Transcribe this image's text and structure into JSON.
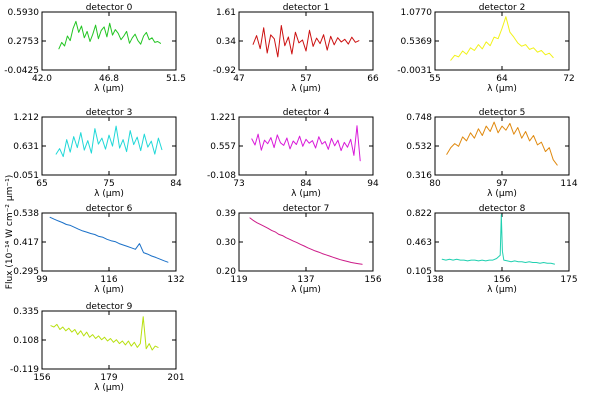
{
  "figure": {
    "ylabel": "Flux (10⁻¹⁴ W cm⁻² μm⁻¹)",
    "xlabel_template": "λ (μm)"
  },
  "chart_data": [
    {
      "type": "line",
      "title": "detector 0",
      "xlabel": "λ (μm)",
      "xlim": [
        42.0,
        51.5
      ],
      "ylim": [
        -0.0425,
        0.593
      ],
      "x_ticks": [
        "42.0",
        "46.8",
        "51.5"
      ],
      "y_ticks": [
        "-0.0425",
        "0.2753",
        "0.5930"
      ],
      "color": "#22c522",
      "series": [
        {
          "x": [
            43.2,
            43.4,
            43.6,
            43.8,
            44.0,
            44.2,
            44.4,
            44.6,
            44.8,
            45.0,
            45.2,
            45.4,
            45.6,
            45.8,
            46.0,
            46.2,
            46.4,
            46.6,
            46.8,
            47.0,
            47.2,
            47.4,
            47.6,
            47.8,
            48.0,
            48.2,
            48.4,
            48.6,
            48.8,
            49.0,
            49.2,
            49.4,
            49.6,
            49.8,
            50.0,
            50.2,
            50.4
          ],
          "y": [
            0.19,
            0.26,
            0.22,
            0.33,
            0.28,
            0.41,
            0.49,
            0.37,
            0.44,
            0.31,
            0.38,
            0.27,
            0.35,
            0.45,
            0.3,
            0.39,
            0.43,
            0.32,
            0.47,
            0.34,
            0.4,
            0.36,
            0.29,
            0.33,
            0.38,
            0.25,
            0.31,
            0.35,
            0.28,
            0.24,
            0.33,
            0.37,
            0.29,
            0.31,
            0.26,
            0.27,
            0.25
          ]
        }
      ]
    },
    {
      "type": "line",
      "title": "detector 1",
      "xlabel": "λ (μm)",
      "xlim": [
        47,
        66
      ],
      "ylim": [
        -0.92,
        1.61
      ],
      "x_ticks": [
        "47",
        "57",
        "66"
      ],
      "y_ticks": [
        "-0.92",
        "0.34",
        "1.61"
      ],
      "color": "#cc1111",
      "series": [
        {
          "x": [
            49.0,
            49.5,
            50.0,
            50.5,
            51.0,
            51.5,
            52.0,
            52.5,
            53.0,
            53.5,
            54.0,
            54.5,
            55.0,
            55.5,
            56.0,
            56.5,
            57.0,
            57.5,
            58.0,
            58.5,
            59.0,
            59.5,
            60.0,
            60.5,
            61.0,
            61.5,
            62.0,
            62.5,
            63.0,
            63.5,
            64.0
          ],
          "y": [
            0.2,
            0.58,
            0.01,
            0.92,
            -0.18,
            0.61,
            0.44,
            -0.35,
            1.02,
            0.14,
            0.52,
            -0.22,
            0.73,
            0.26,
            0.39,
            -0.09,
            0.81,
            0.11,
            0.47,
            0.23,
            0.62,
            -0.05,
            0.55,
            0.18,
            0.49,
            0.3,
            0.42,
            0.21,
            0.51,
            0.29,
            0.36
          ]
        }
      ]
    },
    {
      "type": "line",
      "title": "detector 2",
      "xlabel": "λ (μm)",
      "xlim": [
        55,
        72
      ],
      "ylim": [
        -0.0031,
        1.077
      ],
      "x_ticks": [
        "55",
        "64",
        "72"
      ],
      "y_ticks": [
        "-0.0031",
        "0.5369",
        "1.0770"
      ],
      "color": "#f2f21a",
      "series": [
        {
          "x": [
            57.0,
            57.5,
            58.0,
            58.5,
            59.0,
            59.5,
            60.0,
            60.5,
            61.0,
            61.5,
            62.0,
            62.5,
            63.0,
            63.5,
            64.0,
            64.5,
            65.0,
            65.5,
            66.0,
            66.5,
            67.0,
            67.5,
            68.0,
            68.5,
            69.0,
            69.5,
            70.0
          ],
          "y": [
            0.18,
            0.27,
            0.24,
            0.35,
            0.29,
            0.41,
            0.36,
            0.47,
            0.39,
            0.52,
            0.45,
            0.61,
            0.58,
            0.77,
            0.99,
            0.7,
            0.61,
            0.5,
            0.44,
            0.47,
            0.38,
            0.41,
            0.33,
            0.36,
            0.28,
            0.31,
            0.23
          ]
        }
      ]
    },
    {
      "type": "line",
      "title": "detector 3",
      "xlabel": "λ (μm)",
      "xlim": [
        65,
        84
      ],
      "ylim": [
        0.051,
        1.212
      ],
      "x_ticks": [
        "65",
        "75",
        "84"
      ],
      "y_ticks": [
        "0.051",
        "0.631",
        "1.212"
      ],
      "color": "#20d8d8",
      "series": [
        {
          "x": [
            67.0,
            67.5,
            68.0,
            68.5,
            69.0,
            69.5,
            70.0,
            70.5,
            71.0,
            71.5,
            72.0,
            72.5,
            73.0,
            73.5,
            74.0,
            74.5,
            75.0,
            75.5,
            76.0,
            76.5,
            77.0,
            77.5,
            78.0,
            78.5,
            79.0,
            79.5,
            80.0,
            80.5,
            81.0,
            81.5,
            82.0
          ],
          "y": [
            0.47,
            0.58,
            0.42,
            0.76,
            0.51,
            0.82,
            0.6,
            0.9,
            0.55,
            0.74,
            0.49,
            0.98,
            0.67,
            0.79,
            0.57,
            0.85,
            0.63,
            1.03,
            0.59,
            0.76,
            0.52,
            0.94,
            0.66,
            0.81,
            0.54,
            0.87,
            0.61,
            0.73,
            0.47,
            0.79,
            0.56
          ]
        }
      ]
    },
    {
      "type": "line",
      "title": "detector 4",
      "xlabel": "λ (μm)",
      "xlim": [
        73,
        94
      ],
      "ylim": [
        -0.108,
        1.221
      ],
      "x_ticks": [
        "73",
        "84",
        "94"
      ],
      "y_ticks": [
        "-0.108",
        "0.557",
        "1.221"
      ],
      "color": "#d91ad9",
      "series": [
        {
          "x": [
            75.0,
            75.5,
            76.0,
            76.5,
            77.0,
            77.5,
            78.0,
            78.5,
            79.0,
            79.5,
            80.0,
            80.5,
            81.0,
            81.5,
            82.0,
            82.5,
            83.0,
            83.5,
            84.0,
            84.5,
            85.0,
            85.5,
            86.0,
            86.5,
            87.0,
            87.5,
            88.0,
            88.5,
            89.0,
            89.5,
            90.0,
            90.5,
            91.0,
            91.5,
            92.0
          ],
          "y": [
            0.72,
            0.58,
            0.83,
            0.46,
            0.69,
            0.61,
            0.75,
            0.52,
            0.81,
            0.63,
            0.57,
            0.74,
            0.49,
            0.67,
            0.59,
            0.78,
            0.55,
            0.71,
            0.62,
            0.68,
            0.51,
            0.77,
            0.6,
            0.66,
            0.48,
            0.73,
            0.56,
            0.69,
            0.45,
            0.64,
            0.53,
            0.71,
            0.34,
            1.02,
            0.22
          ]
        }
      ]
    },
    {
      "type": "line",
      "title": "detector 5",
      "xlabel": "λ (μm)",
      "xlim": [
        80,
        114
      ],
      "ylim": [
        0.316,
        0.748
      ],
      "x_ticks": [
        "80",
        "97",
        "114"
      ],
      "y_ticks": [
        "0.316",
        "0.532",
        "0.748"
      ],
      "color": "#e08a10",
      "series": [
        {
          "x": [
            83,
            84,
            85,
            86,
            87,
            88,
            89,
            90,
            91,
            92,
            93,
            94,
            95,
            96,
            97,
            98,
            99,
            100,
            101,
            102,
            103,
            104,
            105,
            106,
            107,
            108,
            109,
            110,
            111
          ],
          "y": [
            0.47,
            0.52,
            0.55,
            0.53,
            0.6,
            0.57,
            0.63,
            0.59,
            0.66,
            0.61,
            0.68,
            0.64,
            0.71,
            0.63,
            0.68,
            0.65,
            0.7,
            0.62,
            0.67,
            0.59,
            0.64,
            0.57,
            0.61,
            0.54,
            0.56,
            0.49,
            0.52,
            0.43,
            0.39
          ]
        }
      ]
    },
    {
      "type": "line",
      "title": "detector 6",
      "xlabel": "λ (μm)",
      "xlim": [
        99,
        132
      ],
      "ylim": [
        0.295,
        0.538
      ],
      "x_ticks": [
        "99",
        "116",
        "132"
      ],
      "y_ticks": [
        "0.295",
        "0.417",
        "0.538"
      ],
      "color": "#1a70c8",
      "series": [
        {
          "x": [
            101,
            102,
            103,
            104,
            105,
            106,
            107,
            108,
            109,
            110,
            111,
            112,
            113,
            114,
            115,
            116,
            117,
            118,
            119,
            120,
            121,
            122,
            123,
            124,
            125,
            126,
            127,
            128,
            129,
            130
          ],
          "y": [
            0.52,
            0.512,
            0.505,
            0.498,
            0.49,
            0.486,
            0.478,
            0.47,
            0.463,
            0.458,
            0.452,
            0.448,
            0.44,
            0.436,
            0.428,
            0.422,
            0.418,
            0.41,
            0.404,
            0.398,
            0.392,
            0.386,
            0.41,
            0.372,
            0.366,
            0.358,
            0.352,
            0.345,
            0.338,
            0.332
          ]
        }
      ]
    },
    {
      "type": "line",
      "title": "detector 7",
      "xlabel": "λ (μm)",
      "xlim": [
        119,
        156
      ],
      "ylim": [
        0.2,
        0.39
      ],
      "x_ticks": [
        "119",
        "137",
        "156"
      ],
      "y_ticks": [
        "0.20",
        "0.30",
        "0.39"
      ],
      "color": "#cc1a88",
      "series": [
        {
          "x": [
            122,
            123,
            124,
            125,
            126,
            127,
            128,
            129,
            130,
            131,
            132,
            133,
            134,
            135,
            136,
            137,
            138,
            139,
            140,
            141,
            142,
            143,
            144,
            145,
            146,
            147,
            148,
            149,
            150,
            151,
            152,
            153
          ],
          "y": [
            0.374,
            0.365,
            0.358,
            0.352,
            0.346,
            0.34,
            0.333,
            0.328,
            0.32,
            0.316,
            0.309,
            0.304,
            0.298,
            0.293,
            0.287,
            0.282,
            0.276,
            0.271,
            0.266,
            0.262,
            0.257,
            0.253,
            0.249,
            0.245,
            0.241,
            0.237,
            0.234,
            0.231,
            0.228,
            0.226,
            0.224,
            0.222
          ]
        }
      ]
    },
    {
      "type": "line",
      "title": "detector 8",
      "xlabel": "λ (μm)",
      "xlim": [
        138,
        175
      ],
      "ylim": [
        0.105,
        0.822
      ],
      "x_ticks": [
        "138",
        "156",
        "175"
      ],
      "y_ticks": [
        "0.105",
        "0.463",
        "0.822"
      ],
      "color": "#20d0b0",
      "series": [
        {
          "x": [
            140,
            141,
            142,
            143,
            144,
            145,
            146,
            147,
            148,
            149,
            150,
            151,
            152,
            153,
            154,
            155,
            156,
            156.3,
            156.6,
            157,
            158,
            159,
            160,
            161,
            162,
            163,
            164,
            165,
            166,
            167,
            168,
            169,
            170,
            171
          ],
          "y": [
            0.25,
            0.24,
            0.25,
            0.24,
            0.25,
            0.24,
            0.24,
            0.23,
            0.24,
            0.24,
            0.23,
            0.24,
            0.23,
            0.24,
            0.24,
            0.26,
            0.3,
            0.8,
            0.35,
            0.24,
            0.23,
            0.22,
            0.23,
            0.22,
            0.22,
            0.21,
            0.22,
            0.21,
            0.21,
            0.2,
            0.21,
            0.2,
            0.2,
            0.19
          ]
        }
      ]
    },
    {
      "type": "line",
      "title": "detector 9",
      "xlabel": "λ (μm)",
      "xlim": [
        156,
        201
      ],
      "ylim": [
        -0.119,
        0.335
      ],
      "x_ticks": [
        "156",
        "179",
        "201"
      ],
      "y_ticks": [
        "-0.119",
        "0.108",
        "0.335"
      ],
      "color": "#b8e010",
      "series": [
        {
          "x": [
            159,
            160,
            161,
            162,
            163,
            164,
            165,
            166,
            167,
            168,
            169,
            170,
            171,
            172,
            173,
            174,
            175,
            176,
            177,
            178,
            179,
            180,
            181,
            182,
            183,
            184,
            185,
            186,
            187,
            188,
            189,
            190,
            191,
            192,
            193,
            194,
            195
          ],
          "y": [
            0.22,
            0.21,
            0.23,
            0.19,
            0.21,
            0.18,
            0.2,
            0.17,
            0.19,
            0.15,
            0.18,
            0.14,
            0.17,
            0.13,
            0.15,
            0.12,
            0.14,
            0.11,
            0.13,
            0.1,
            0.12,
            0.09,
            0.11,
            0.08,
            0.1,
            0.07,
            0.1,
            0.06,
            0.09,
            0.05,
            0.08,
            0.29,
            0.04,
            0.08,
            0.03,
            0.06,
            0.05
          ]
        }
      ]
    }
  ]
}
